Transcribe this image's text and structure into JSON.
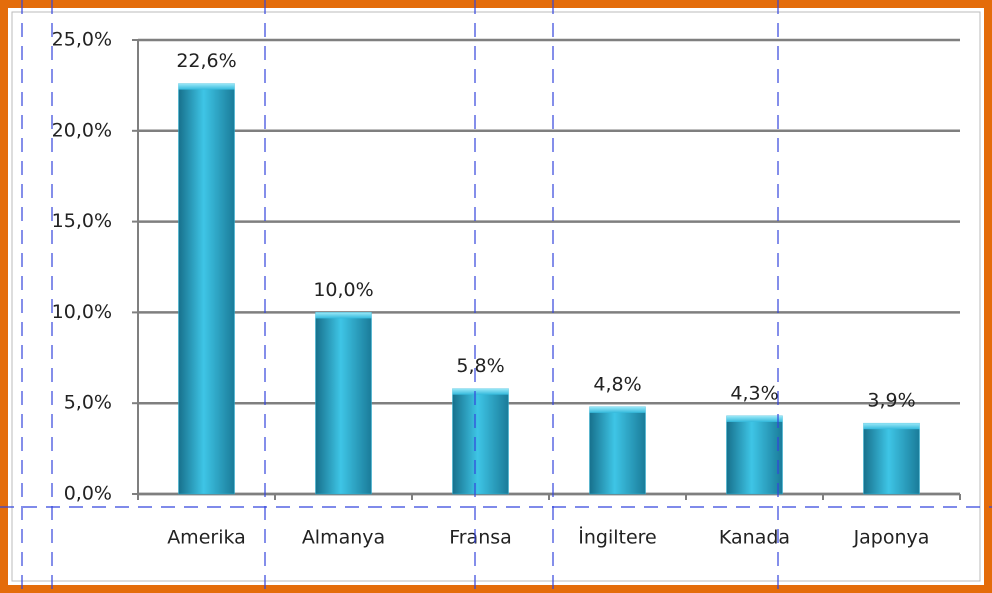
{
  "chart_data": {
    "type": "bar",
    "categories": [
      "Amerika",
      "Almanya",
      "Fransa",
      "İngiltere",
      "Kanada",
      "Japonya"
    ],
    "values": [
      22.6,
      10.0,
      5.8,
      4.8,
      4.3,
      3.9
    ],
    "value_labels": [
      "22,6%",
      "10,0%",
      "5,8%",
      "4,8%",
      "4,3%",
      "3,9%"
    ],
    "color": "#2fb3d6",
    "ylim": [
      0,
      25
    ],
    "yticks": [
      {
        "value": 0,
        "label": "0,0%"
      },
      {
        "value": 5,
        "label": "5,0%"
      },
      {
        "value": 10,
        "label": "10,0%"
      },
      {
        "value": 15,
        "label": "15,0%"
      },
      {
        "value": 20,
        "label": "20,0%"
      },
      {
        "value": 25,
        "label": "25,0%"
      }
    ],
    "grid": true
  }
}
